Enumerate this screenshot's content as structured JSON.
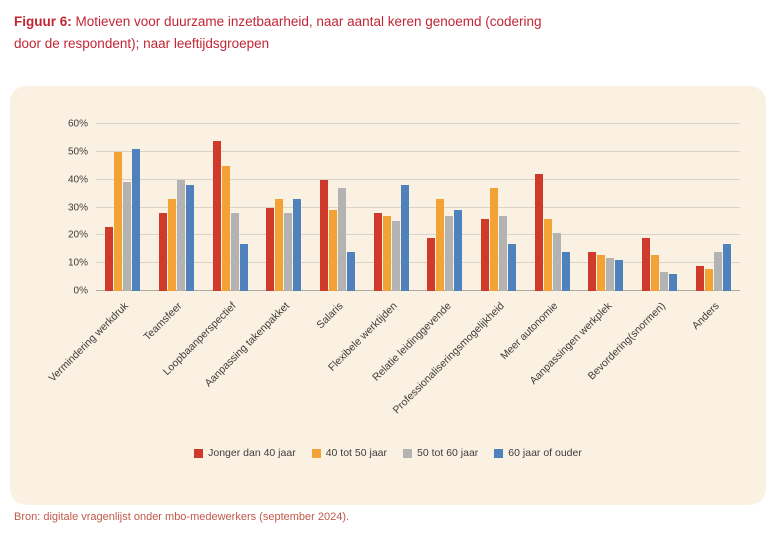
{
  "title": {
    "label": "Figuur 6:",
    "text": "Motieven voor duurzame inzetbaarheid, naar aantal keren genoemd (codering door de respondent); naar leeftijdsgroepen"
  },
  "source": "Bron: digitale vragenlijst onder mbo-medewerkers (september 2024).",
  "palette": {
    "title_red": "#c22634",
    "panel_bg": "#fbf1e2",
    "source_color": "#c05a49",
    "gridline": "#d9d4c9"
  },
  "chart_data": {
    "type": "bar",
    "title": "Motieven voor duurzame inzetbaarheid, naar aantal keren genoemd (codering door de respondent); naar leeftijdsgroepen",
    "categories": [
      "Vermindering werkdruk",
      "Teamsfeer",
      "Loopbaanperspectief",
      "Aanpassing takenpakket",
      "Salaris",
      "Flexibele werktijden",
      "Relatie leidinggevende",
      "Professionaliseringsmogelijkheid",
      "Meer autonomie",
      "Aanpassingen werkplek",
      "Bevordering(snormen)",
      "Anders"
    ],
    "series": [
      {
        "name": "Jonger dan 40 jaar",
        "color": "#cf3a2b",
        "values": [
          23,
          28,
          54,
          30,
          40,
          28,
          19,
          26,
          42,
          14,
          19,
          9
        ]
      },
      {
        "name": "40 tot 50 jaar",
        "color": "#f3a336",
        "values": [
          50,
          33,
          45,
          33,
          29,
          27,
          33,
          37,
          26,
          13,
          13,
          8
        ]
      },
      {
        "name": "50 tot 60 jaar",
        "color": "#b3b3b3",
        "values": [
          39,
          40,
          28,
          28,
          37,
          25,
          27,
          27,
          21,
          12,
          7,
          14
        ]
      },
      {
        "name": "60 jaar of ouder",
        "color": "#4f81bd",
        "values": [
          51,
          38,
          17,
          33,
          14,
          38,
          29,
          17,
          14,
          11,
          6,
          17
        ]
      }
    ],
    "ylim": [
      0,
      60
    ],
    "yticks": [
      "0%",
      "10%",
      "20%",
      "30%",
      "40%",
      "50%",
      "60%"
    ],
    "grid": true,
    "legend_position": "bottom"
  }
}
